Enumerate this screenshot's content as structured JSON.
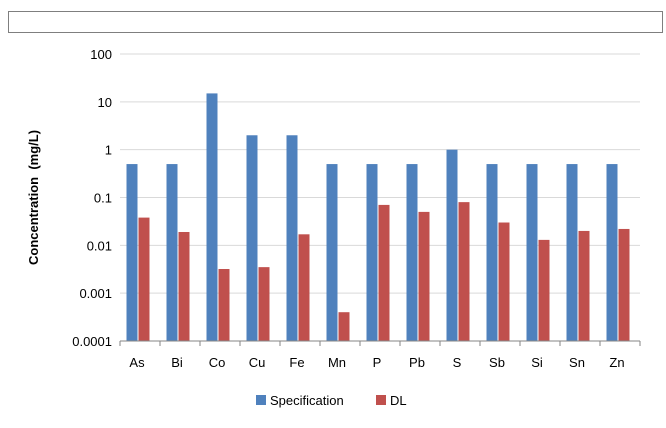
{
  "chart_data": {
    "type": "bar",
    "title": "",
    "xlabel": "",
    "ylabel": "Concentration  (mg/L)",
    "yscale": "log",
    "ylim": [
      0.0001,
      100
    ],
    "yticks": [
      {
        "value": 100,
        "label": "100"
      },
      {
        "value": 10,
        "label": "10"
      },
      {
        "value": 1,
        "label": "1"
      },
      {
        "value": 0.1,
        "label": "0.1"
      },
      {
        "value": 0.01,
        "label": "0.01"
      },
      {
        "value": 0.001,
        "label": "0.001"
      },
      {
        "value": 0.0001,
        "label": "0.0001"
      }
    ],
    "grid": "horizontal",
    "legend_position": "bottom",
    "categories": [
      "As",
      "Bi",
      "Co",
      "Cu",
      "Fe",
      "Mn",
      "P",
      "Pb",
      "S",
      "Sb",
      "Si",
      "Sn",
      "Zn"
    ],
    "series": [
      {
        "name": "Specification",
        "color": "#4f81bd",
        "values": [
          0.5,
          0.5,
          15,
          2,
          2,
          0.5,
          0.5,
          0.5,
          1,
          0.5,
          0.5,
          0.5,
          0.5
        ]
      },
      {
        "name": "DL",
        "color": "#c0504d",
        "values": [
          0.038,
          0.019,
          0.0032,
          0.0035,
          0.017,
          0.0004,
          0.07,
          0.05,
          0.08,
          0.03,
          0.013,
          0.02,
          0.022
        ]
      }
    ]
  }
}
